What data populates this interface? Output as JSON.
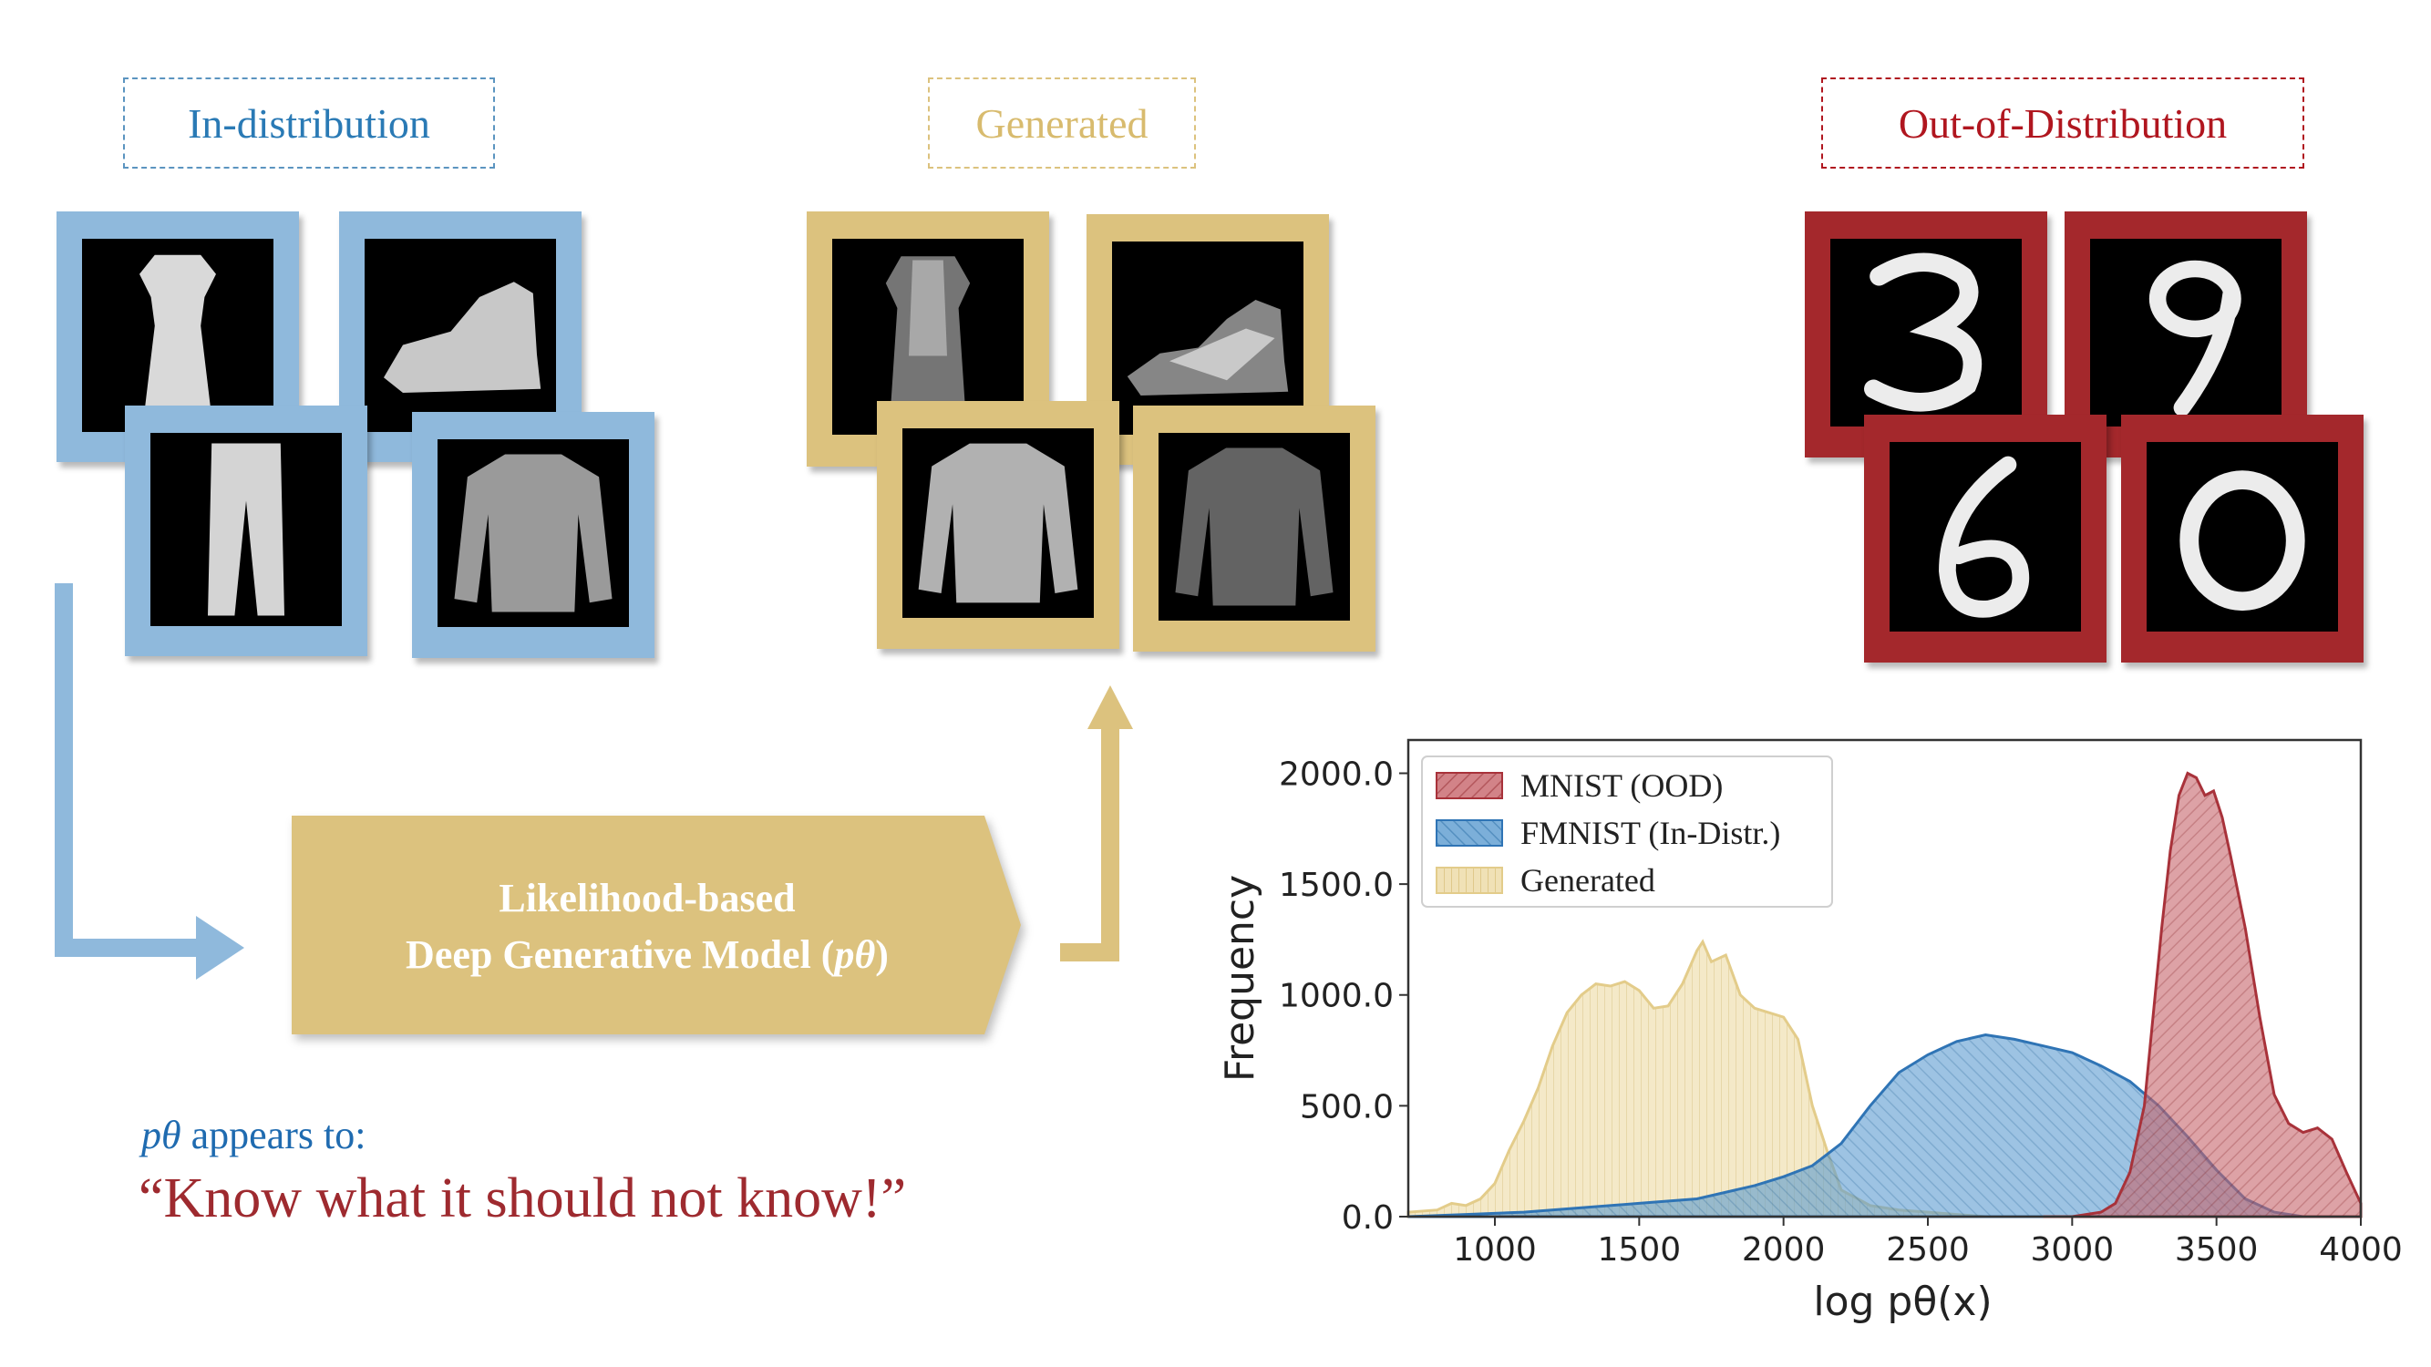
{
  "labels": {
    "in_distribution": "In-distribution",
    "generated": "Generated",
    "ood": "Out-of-Distribution"
  },
  "colors": {
    "blue": "#8fb9dc",
    "blue_text": "#2a7ab5",
    "gold": "#dcc27e",
    "gold_text": "#d8bb6e",
    "red": "#a4282c",
    "red_text": "#b0161f",
    "quote": "#9e2a2f"
  },
  "model": {
    "line1": "Likelihood-based",
    "line2_prefix": "Deep Generative Model (",
    "line2_symbol": "pθ",
    "line2_suffix": ")"
  },
  "caption": {
    "symbol": "pθ",
    "appears": " appears to:",
    "quote": "“Know what it should not know!”"
  },
  "images": {
    "in_distribution": [
      "dress",
      "sneaker",
      "trousers",
      "pullover"
    ],
    "generated": [
      "dress",
      "sandal",
      "shirt",
      "pullover"
    ],
    "ood": [
      "3",
      "9",
      "6",
      "0"
    ]
  },
  "chart_data": {
    "type": "area",
    "xlabel": "log pθ(x)",
    "ylabel": "Frequency",
    "xlim": [
      700,
      4000
    ],
    "ylim": [
      0,
      2150
    ],
    "xticks": [
      1000,
      1500,
      2000,
      2500,
      3000,
      3500,
      4000
    ],
    "yticks": [
      "0.0",
      "500.0",
      "1000.0",
      "1500.0",
      "2000.0"
    ],
    "legend_position": "top-left",
    "series": [
      {
        "name": "MNIST (OOD)",
        "color": "#c7646a",
        "x": [
          2900,
          3000,
          3100,
          3150,
          3200,
          3250,
          3280,
          3310,
          3340,
          3370,
          3400,
          3430,
          3460,
          3490,
          3520,
          3550,
          3600,
          3650,
          3700,
          3750,
          3800,
          3850,
          3900,
          3950,
          4000
        ],
        "y": [
          0,
          0,
          20,
          60,
          200,
          500,
          900,
          1300,
          1650,
          1900,
          2000,
          1980,
          1900,
          1920,
          1800,
          1620,
          1300,
          900,
          550,
          420,
          380,
          400,
          350,
          200,
          60
        ]
      },
      {
        "name": "FMNIST (In-Distr.)",
        "color": "#5b9bd0",
        "x": [
          700,
          900,
          1100,
          1300,
          1500,
          1700,
          1900,
          2000,
          2100,
          2200,
          2300,
          2400,
          2500,
          2600,
          2700,
          2800,
          2900,
          3000,
          3100,
          3200,
          3300,
          3400,
          3500,
          3600,
          3700,
          3800
        ],
        "y": [
          0,
          10,
          20,
          40,
          60,
          80,
          140,
          180,
          230,
          330,
          500,
          650,
          730,
          790,
          820,
          800,
          770,
          740,
          680,
          610,
          500,
          360,
          210,
          80,
          20,
          0
        ]
      },
      {
        "name": "Generated",
        "color": "#ecd9a4",
        "x": [
          700,
          800,
          850,
          900,
          950,
          1000,
          1050,
          1100,
          1150,
          1200,
          1250,
          1300,
          1350,
          1400,
          1450,
          1500,
          1550,
          1600,
          1650,
          1700,
          1720,
          1750,
          1800,
          1850,
          1900,
          1950,
          2000,
          2050,
          2100,
          2150,
          2200,
          2300,
          2400,
          2500,
          2600,
          2700
        ],
        "y": [
          20,
          30,
          60,
          50,
          80,
          150,
          300,
          430,
          580,
          770,
          920,
          1000,
          1050,
          1040,
          1060,
          1020,
          940,
          950,
          1050,
          1200,
          1240,
          1150,
          1180,
          1000,
          940,
          920,
          900,
          800,
          500,
          300,
          120,
          50,
          30,
          20,
          10,
          0
        ]
      }
    ]
  }
}
